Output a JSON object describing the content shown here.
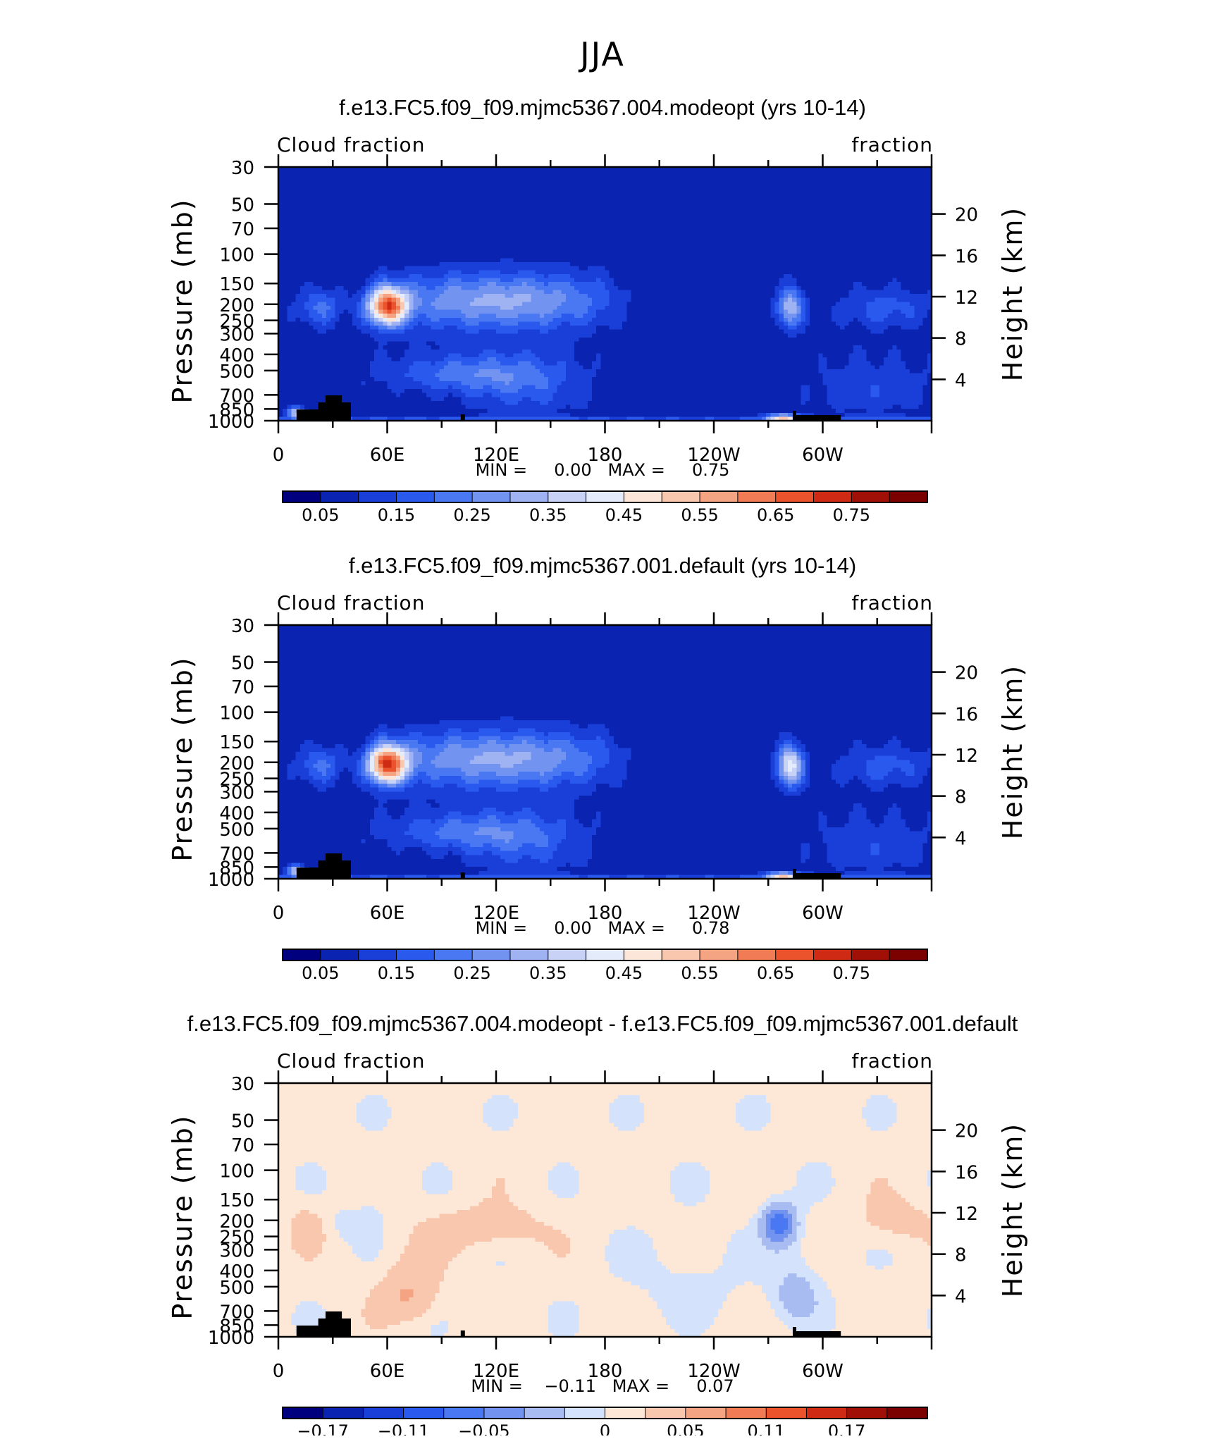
{
  "figure": {
    "title": "JJA"
  },
  "palette": {
    "cloud": [
      "#00007f",
      "#0a23b0",
      "#1a3ed8",
      "#2a59ee",
      "#4a78f2",
      "#7393f0",
      "#9fb2f2",
      "#c8d2f6",
      "#e4ecfb",
      "#fbe6d9",
      "#f9c6ae",
      "#f4a383",
      "#f07b55",
      "#ea532c",
      "#cf2a14",
      "#a01006",
      "#7b0000"
    ],
    "diff": [
      "#00007f",
      "#0a23b0",
      "#1a3ed8",
      "#2a59ee",
      "#4a78f2",
      "#7393f0",
      "#a8bcf2",
      "#d4e2fb",
      "#fde7d7",
      "#f9c6ae",
      "#f4a383",
      "#f07b55",
      "#ea532c",
      "#cf2a14",
      "#a01006",
      "#7b0000"
    ],
    "land": "#000000"
  },
  "chart_data": [
    {
      "type": "heatmap",
      "title": "f.e13.FC5.f09_f09.mjmc5367.004.modeopt (yrs 10-14)",
      "left_string": "Cloud fraction",
      "right_string": "fraction",
      "ylabel": "Pressure (mb)",
      "y2label": "Height (km)",
      "x_ticklabels": [
        "0",
        "60E",
        "120E",
        "180",
        "120W",
        "60W"
      ],
      "x_ticks_deg": [
        0,
        60,
        120,
        180,
        240,
        300
      ],
      "xlim": [
        0,
        360
      ],
      "y_ticklabels": [
        "30",
        "50",
        "70",
        "100",
        "150",
        "200",
        "250",
        "300",
        "400",
        "500",
        "700",
        "850",
        "1000"
      ],
      "y_ticks_mb": [
        30,
        50,
        70,
        100,
        150,
        200,
        250,
        300,
        400,
        500,
        700,
        850,
        1000
      ],
      "ylim": [
        1000,
        30
      ],
      "y2_ticklabels": [
        "20",
        "16",
        "12",
        "8",
        "4"
      ],
      "y2_ticks_km": [
        20,
        16,
        12,
        8,
        4
      ],
      "minmax_text": "MIN =     0.00   MAX =     0.75",
      "colorbar_labels": [
        "0.05",
        "0.15",
        "0.25",
        "0.35",
        "0.45",
        "0.55",
        "0.65",
        "0.75"
      ],
      "levels": [
        0.0,
        0.05,
        0.1,
        0.15,
        0.2,
        0.25,
        0.3,
        0.35,
        0.4,
        0.45,
        0.5,
        0.55,
        0.6,
        0.65,
        0.7,
        0.75
      ],
      "min": 0.0,
      "max": 0.75
    },
    {
      "type": "heatmap",
      "title": "f.e13.FC5.f09_f09.mjmc5367.001.default (yrs 10-14)",
      "left_string": "Cloud fraction",
      "right_string": "fraction",
      "ylabel": "Pressure (mb)",
      "y2label": "Height (km)",
      "x_ticklabels": [
        "0",
        "60E",
        "120E",
        "180",
        "120W",
        "60W"
      ],
      "x_ticks_deg": [
        0,
        60,
        120,
        180,
        240,
        300
      ],
      "xlim": [
        0,
        360
      ],
      "y_ticklabels": [
        "30",
        "50",
        "70",
        "100",
        "150",
        "200",
        "250",
        "300",
        "400",
        "500",
        "700",
        "850",
        "1000"
      ],
      "y_ticks_mb": [
        30,
        50,
        70,
        100,
        150,
        200,
        250,
        300,
        400,
        500,
        700,
        850,
        1000
      ],
      "ylim": [
        1000,
        30
      ],
      "y2_ticklabels": [
        "20",
        "16",
        "12",
        "8",
        "4"
      ],
      "y2_ticks_km": [
        20,
        16,
        12,
        8,
        4
      ],
      "minmax_text": "MIN =     0.00   MAX =     0.78",
      "colorbar_labels": [
        "0.05",
        "0.15",
        "0.25",
        "0.35",
        "0.45",
        "0.55",
        "0.65",
        "0.75"
      ],
      "levels": [
        0.0,
        0.05,
        0.1,
        0.15,
        0.2,
        0.25,
        0.3,
        0.35,
        0.4,
        0.45,
        0.5,
        0.55,
        0.6,
        0.65,
        0.7,
        0.75
      ],
      "min": 0.0,
      "max": 0.78
    },
    {
      "type": "heatmap",
      "title": "f.e13.FC5.f09_f09.mjmc5367.004.modeopt - f.e13.FC5.f09_f09.mjmc5367.001.default",
      "left_string": "Cloud fraction",
      "right_string": "fraction",
      "ylabel": "Pressure (mb)",
      "y2label": "Height (km)",
      "x_ticklabels": [
        "0",
        "60E",
        "120E",
        "180",
        "120W",
        "60W"
      ],
      "x_ticks_deg": [
        0,
        60,
        120,
        180,
        240,
        300
      ],
      "xlim": [
        0,
        360
      ],
      "y_ticklabels": [
        "30",
        "50",
        "70",
        "100",
        "150",
        "200",
        "250",
        "300",
        "400",
        "500",
        "700",
        "850",
        "1000"
      ],
      "y_ticks_mb": [
        30,
        50,
        70,
        100,
        150,
        200,
        250,
        300,
        400,
        500,
        700,
        850,
        1000
      ],
      "ylim": [
        1000,
        30
      ],
      "y2_ticklabels": [
        "20",
        "16",
        "12",
        "8",
        "4"
      ],
      "y2_ticks_km": [
        20,
        16,
        12,
        8,
        4
      ],
      "minmax_text": "MIN =    −0.11   MAX =     0.07",
      "colorbar_labels": [
        "−0.17",
        "−0.11",
        "−0.05",
        "0",
        "0.05",
        "0.11",
        "0.17"
      ],
      "levels": [
        -0.2,
        -0.17,
        -0.14,
        -0.11,
        -0.08,
        -0.05,
        -0.02,
        0.0,
        0.02,
        0.05,
        0.08,
        0.11,
        0.14,
        0.17,
        0.2
      ],
      "min": -0.11,
      "max": 0.07
    }
  ]
}
